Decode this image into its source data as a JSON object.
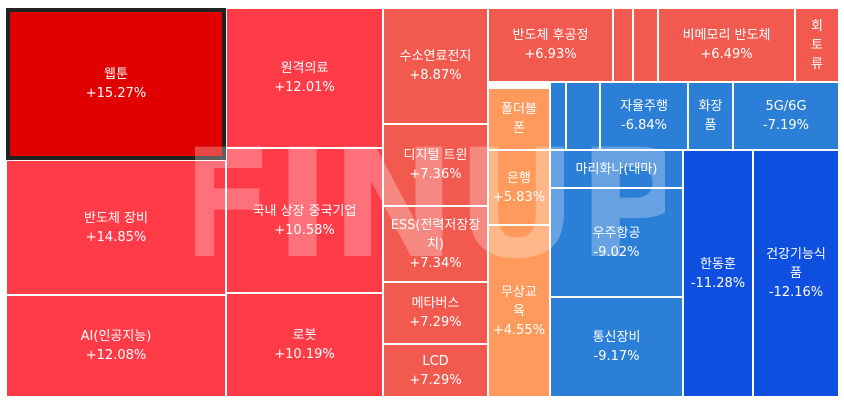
{
  "chart_data": {
    "type": "treemap",
    "selected_index": 0,
    "colors": {
      "strong_up": "#e00000",
      "up_high": "#ff3b47",
      "up_mid": "#f25a4f",
      "up_low": "#ff9a5c",
      "down_mid": "#2b7fd6",
      "down_high": "#0f4fe0",
      "gap": "#ffffff"
    },
    "watermark": "FINUP",
    "items": [
      {
        "name": "웹툰",
        "change": "+15.27%"
      },
      {
        "name": "반도체 장비",
        "change": "+14.85%"
      },
      {
        "name": "AI(인공지능)",
        "change": "+12.08%"
      },
      {
        "name": "원격의료",
        "change": "+12.01%"
      },
      {
        "name": "국내 상장 중국기업",
        "change": "+10.58%"
      },
      {
        "name": "로봇",
        "change": "+10.19%"
      },
      {
        "name": "수소연료전지",
        "change": "+8.87%"
      },
      {
        "name": "디지털 트윈",
        "change": "+7.36%"
      },
      {
        "name": "ESS(전력저장장치)",
        "change": "+7.34%"
      },
      {
        "name": "메타버스",
        "change": "+7.29%"
      },
      {
        "name": "LCD",
        "change": "+7.29%"
      },
      {
        "name": "반도체 후공정",
        "change": "+6.93%"
      },
      {
        "name": "",
        "change": ""
      },
      {
        "name": "",
        "change": ""
      },
      {
        "name": "비메모리 반도체",
        "change": "+6.49%"
      },
      {
        "name": "회토류",
        "change": ""
      },
      {
        "name": "폴더블폰",
        "change": ""
      },
      {
        "name": "은행",
        "change": "+5.83%"
      },
      {
        "name": "무상교육",
        "change": "+4.55%"
      },
      {
        "name": "",
        "change": ""
      },
      {
        "name": "",
        "change": ""
      },
      {
        "name": "자율주행",
        "change": "-6.84%"
      },
      {
        "name": "화장품",
        "change": ""
      },
      {
        "name": "5G/6G",
        "change": "-7.19%"
      },
      {
        "name": "마리화나(대마)",
        "change": ""
      },
      {
        "name": "우주항공",
        "change": "-9.02%"
      },
      {
        "name": "통신장비",
        "change": "-9.17%"
      },
      {
        "name": "한동훈",
        "change": "-11.28%"
      },
      {
        "name": "건강기능식품",
        "change": "-12.16%"
      }
    ]
  }
}
